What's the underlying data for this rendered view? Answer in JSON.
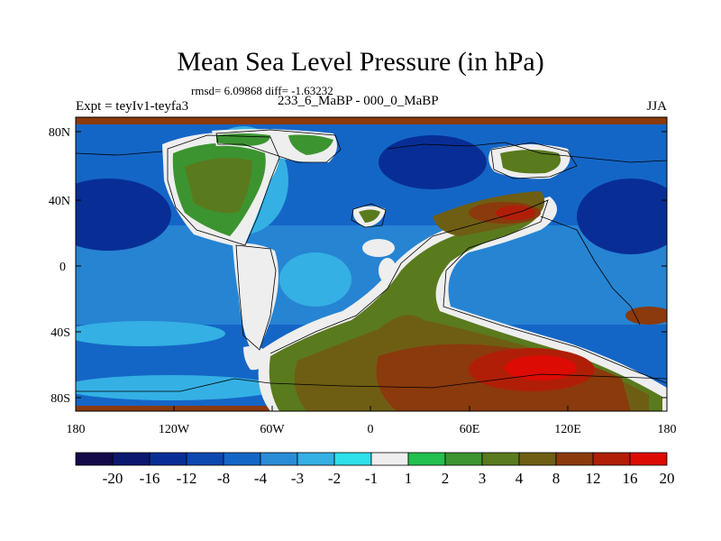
{
  "title": "Mean Sea Level Pressure (in hPa)",
  "stats_line": "rmsd= 6.09868 diff= -1.63232",
  "left_label": "Expt = teyIv1-teyfa3",
  "center_label": "233_6_MaBP - 000_0_MaBP",
  "right_label": "JJA",
  "y_ticks": [
    "80N",
    "40N",
    "0",
    "40S",
    "80S"
  ],
  "x_ticks": [
    "180",
    "120W",
    "60W",
    "0",
    "60E",
    "120E",
    "180"
  ],
  "colorbar": {
    "labels": [
      "-20",
      "-16",
      "-12",
      "-8",
      "-4",
      "-3",
      "-2",
      "-1",
      "1",
      "2",
      "3",
      "4",
      "8",
      "12",
      "16",
      "20"
    ],
    "colors": [
      "#140a4a",
      "#0a1870",
      "#082e96",
      "#0c48b0",
      "#1466c6",
      "#2a8cd6",
      "#34b0e4",
      "#2ee0ea",
      "#eeeeee",
      "#22c04e",
      "#3c9430",
      "#5a7a1e",
      "#6e5e14",
      "#8a3a0c",
      "#b01e08",
      "#dc0c04"
    ]
  }
}
